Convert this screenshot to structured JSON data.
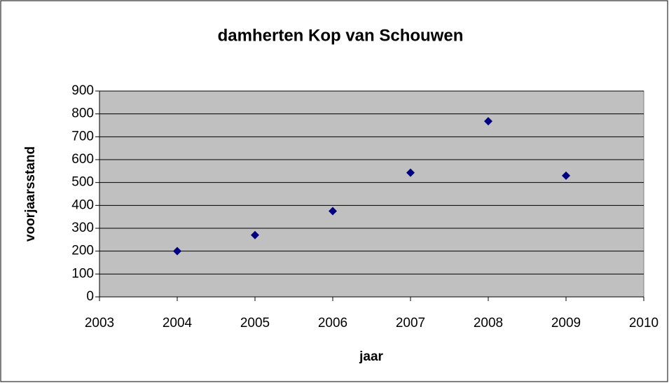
{
  "chart_data": {
    "type": "scatter",
    "title": "damherten Kop van Schouwen",
    "x_label": "jaar",
    "y_label": "voorjaarsstand",
    "series": [
      {
        "color": "#000080",
        "x": [
          2004,
          2005,
          2006,
          2007,
          2008,
          2009
        ],
        "values": [
          200,
          270,
          375,
          543,
          768,
          530
        ]
      }
    ],
    "xlim": [
      2003,
      2010
    ],
    "xticks": [
      2003,
      2004,
      2005,
      2006,
      2007,
      2008,
      2009,
      2010
    ],
    "ylim": [
      0,
      900
    ],
    "yticks": [
      0,
      100,
      200,
      300,
      400,
      500,
      600,
      700,
      800,
      900
    ],
    "grid": true,
    "plot_background": "#c0c0c0"
  }
}
